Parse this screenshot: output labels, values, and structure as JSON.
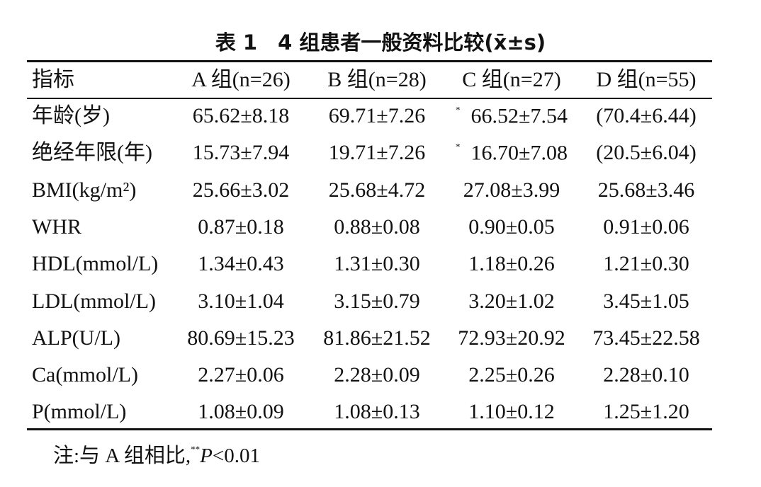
{
  "title": "表 1　4 组患者一般资料比较(x̄±s)",
  "table": {
    "header": [
      "指标",
      "A 组(n=26)",
      "B 组(n=28)",
      "C 组(n=27)",
      "D 组(n=55)"
    ],
    "rows": [
      [
        "年龄(岁)",
        "65.62±8.18",
        "69.71±7.26",
        {
          "sup": "*",
          "text": "66.52±7.54"
        },
        "(70.4±6.44)"
      ],
      [
        "绝经年限(年)",
        "15.73±7.94",
        "19.71±7.26",
        {
          "sup": "*",
          "text": "16.70±7.08"
        },
        "(20.5±6.04)"
      ],
      [
        "BMI(kg/m²)",
        "25.66±3.02",
        "25.68±4.72",
        "27.08±3.99",
        "25.68±3.46"
      ],
      [
        "WHR",
        "0.87±0.18",
        "0.88±0.08",
        "0.90±0.05",
        "0.91±0.06"
      ],
      [
        "HDL(mmol/L)",
        "1.34±0.43",
        "1.31±0.30",
        "1.18±0.26",
        "1.21±0.30"
      ],
      [
        "LDL(mmol/L)",
        "3.10±1.04",
        "3.15±0.79",
        "3.20±1.02",
        "3.45±1.05"
      ],
      [
        "ALP(U/L)",
        "80.69±15.23",
        "81.86±21.52",
        "72.93±20.92",
        "73.45±22.58"
      ],
      [
        "Ca(mmol/L)",
        "2.27±0.06",
        "2.28±0.09",
        "2.25±0.26",
        "2.28±0.10"
      ],
      [
        "P(mmol/L)",
        "1.08±0.09",
        "1.08±0.13",
        "1.10±0.12",
        "1.25±1.20"
      ]
    ]
  },
  "note": {
    "prefix": "注:与 A 组相比,",
    "sup": "**",
    "italic": "P",
    "rest": "<0.01"
  }
}
